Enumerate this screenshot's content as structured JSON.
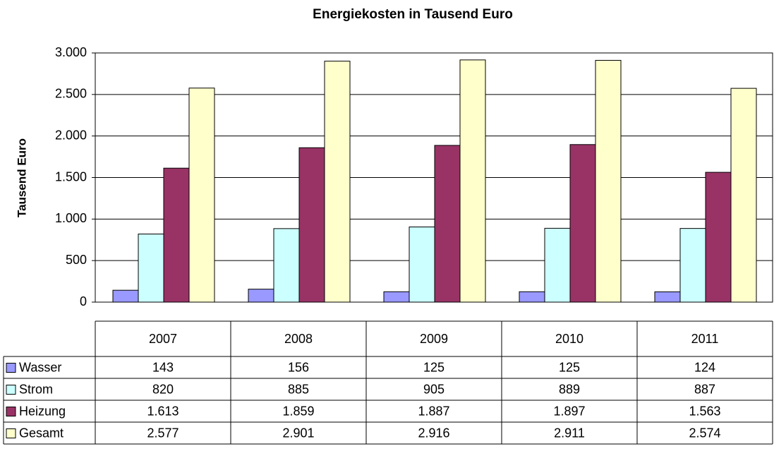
{
  "chart_data": {
    "type": "bar",
    "title": "Energiekosten in Tausend Euro",
    "y_label": "Tausend Euro",
    "categories": [
      "2007",
      "2008",
      "2009",
      "2010",
      "2011"
    ],
    "series": [
      {
        "name": "Wasser",
        "color": "#9999ff",
        "values": [
          143,
          156,
          125,
          125,
          124
        ],
        "value_labels": [
          "143",
          "156",
          "125",
          "125",
          "124"
        ]
      },
      {
        "name": "Strom",
        "color": "#ccffff",
        "values": [
          820,
          885,
          905,
          889,
          887
        ],
        "value_labels": [
          "820",
          "885",
          "905",
          "889",
          "887"
        ]
      },
      {
        "name": "Heizung",
        "color": "#993366",
        "values": [
          1613,
          1859,
          1887,
          1897,
          1563
        ],
        "value_labels": [
          "1.613",
          "1.859",
          "1.887",
          "1.897",
          "1.563"
        ]
      },
      {
        "name": "Gesamt",
        "color": "#ffffcc",
        "values": [
          2577,
          2901,
          2916,
          2911,
          2574
        ],
        "value_labels": [
          "2.577",
          "2.901",
          "2.916",
          "2.911",
          "2.574"
        ]
      }
    ],
    "ylim": [
      0,
      3000
    ],
    "yticks": [
      0,
      500,
      {
        "value": 1000,
        "label": "1.000"
      },
      {
        "value": 1500,
        "label": "1.500"
      },
      {
        "value": 2000,
        "label": "2.000"
      },
      {
        "value": 2500,
        "label": "2.500"
      },
      {
        "value": 3000,
        "label": "3.000"
      }
    ],
    "grid": true
  }
}
